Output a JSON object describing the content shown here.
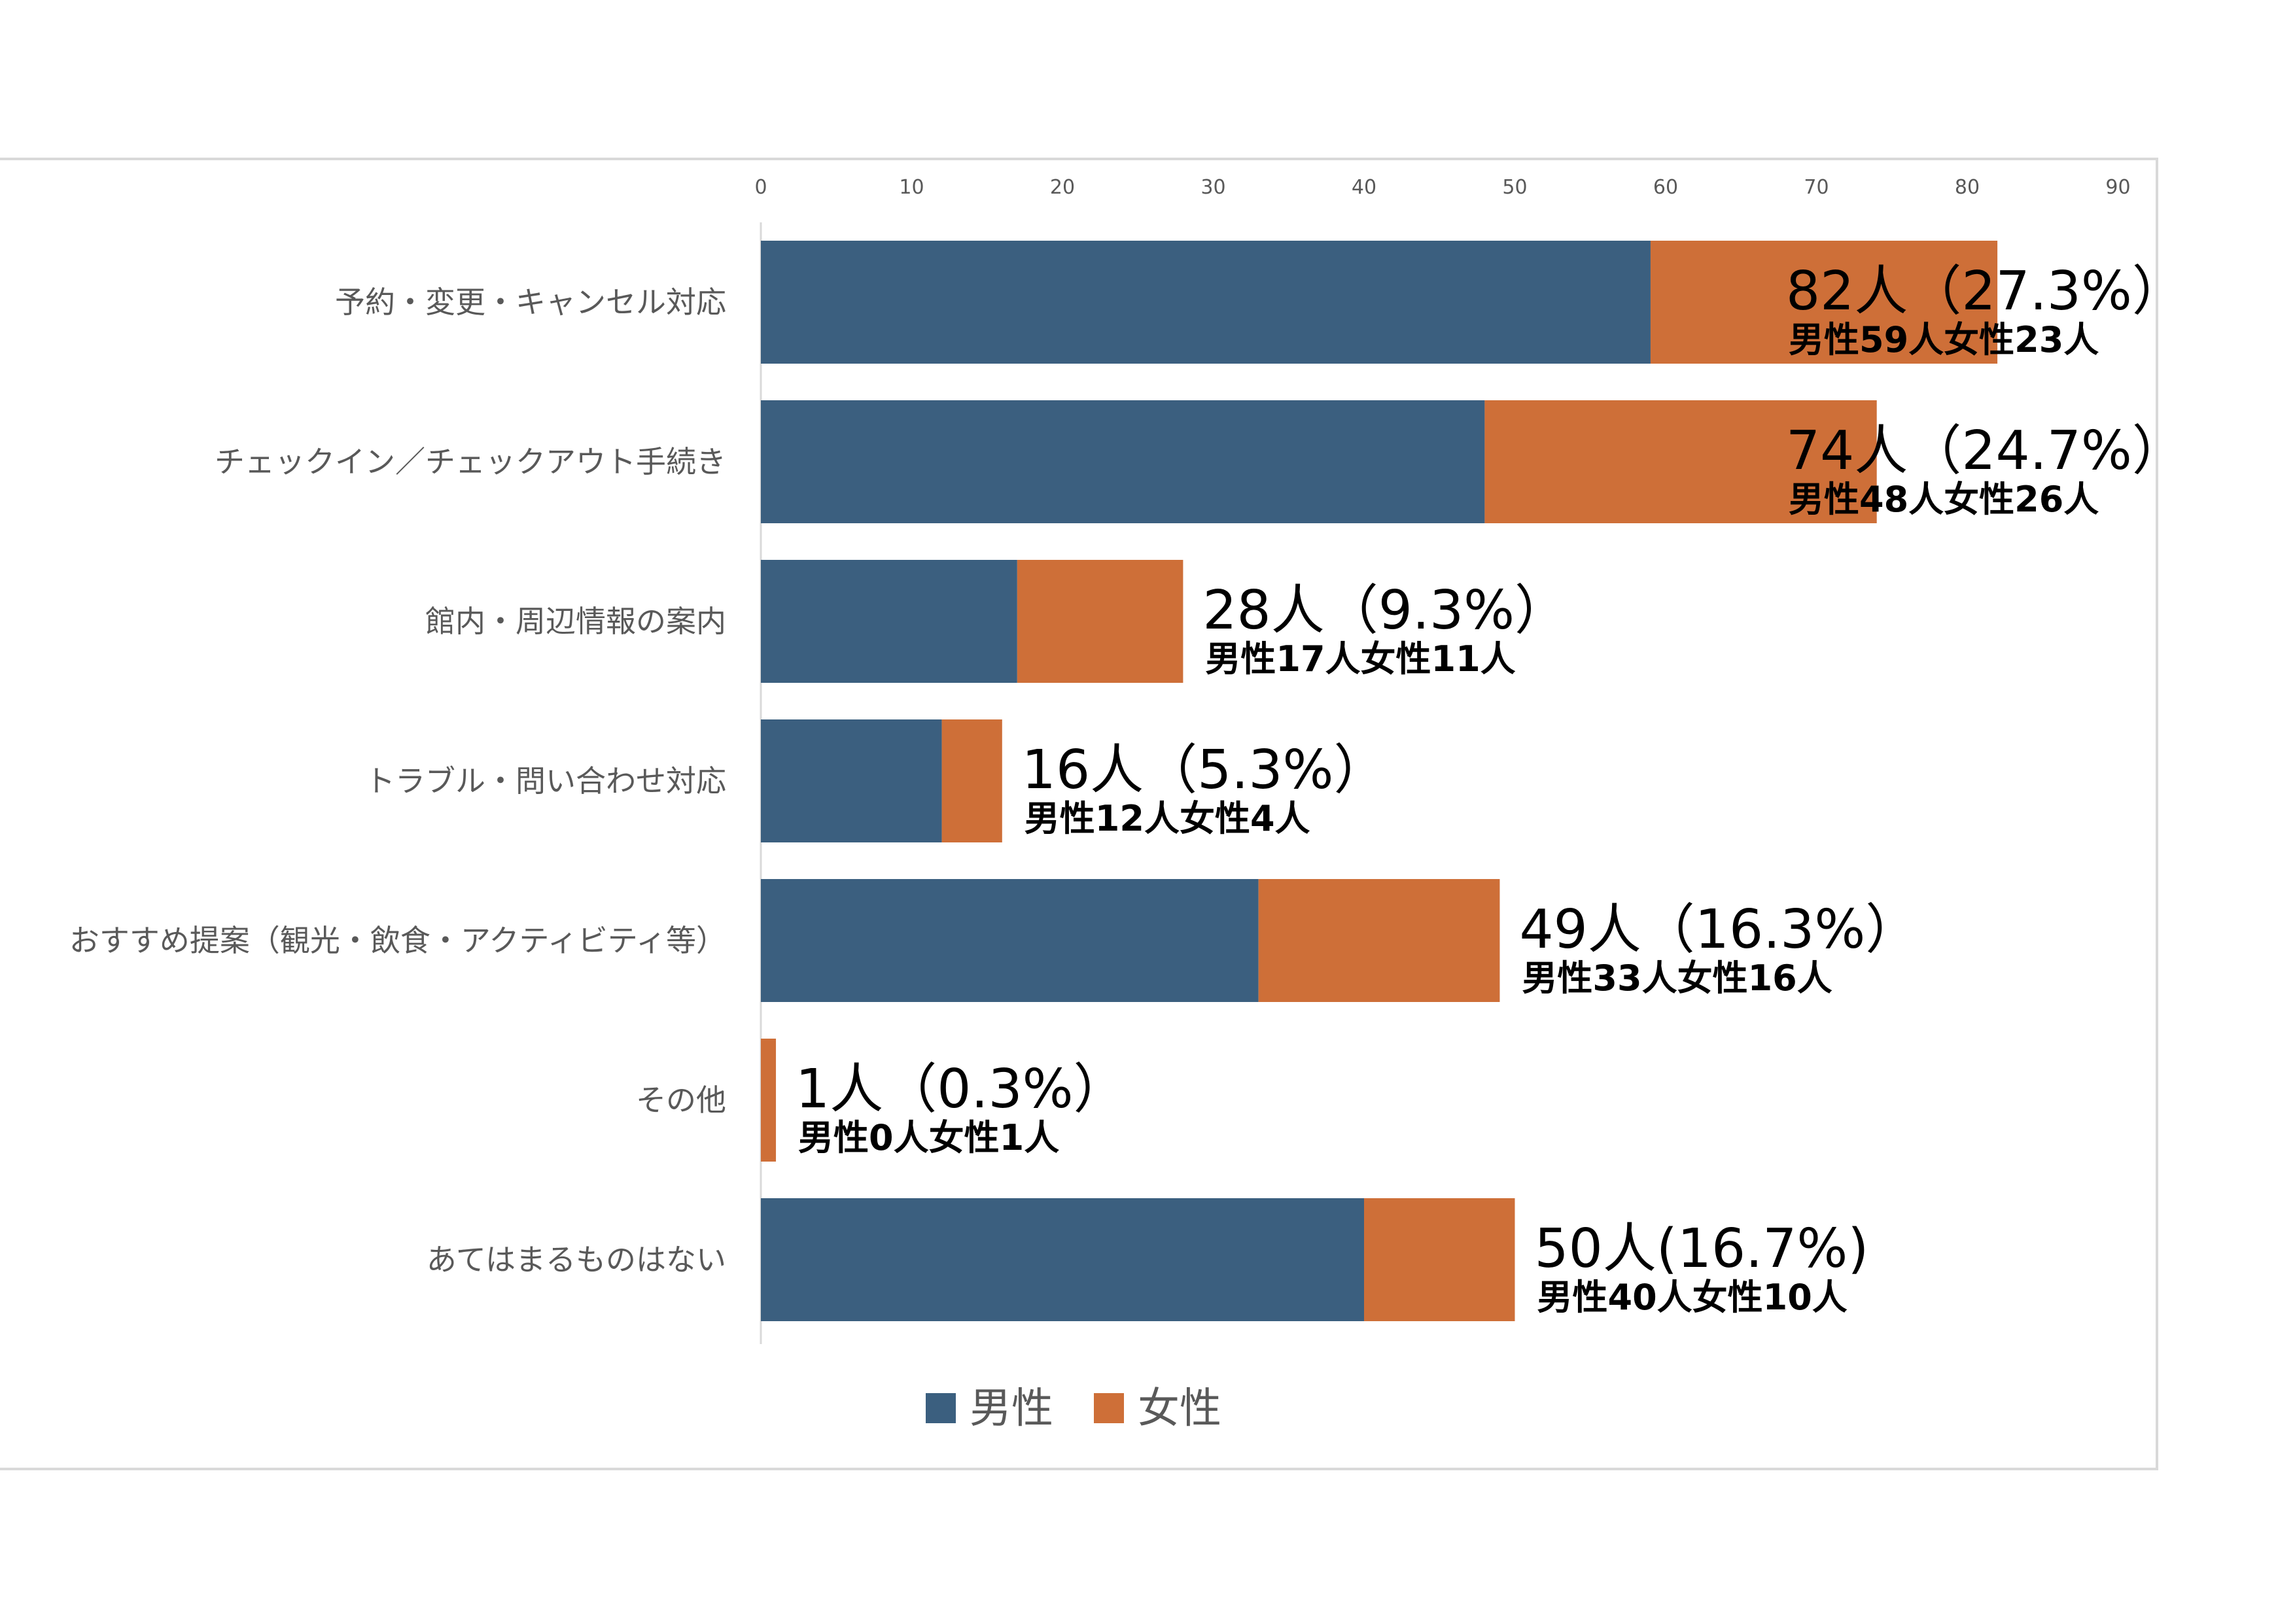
{
  "chart_data": {
    "type": "bar",
    "orientation": "horizontal",
    "stacked": true,
    "title": "",
    "xlabel": "",
    "ylabel": "",
    "xlim": [
      0,
      90
    ],
    "x_ticks": [
      0,
      10,
      20,
      30,
      40,
      50,
      60,
      70,
      80,
      90
    ],
    "x_tick_labels": [
      "0",
      "10",
      "20",
      "30",
      "40",
      "50",
      "60",
      "70",
      "80",
      "90"
    ],
    "x_axis_position": "top",
    "grid": false,
    "legend_position": "bottom",
    "categories": [
      "予約・変更・キャンセル対応",
      "チェックイン／チェックアウト手続き",
      "館内・周辺情報の案内",
      "トラブル・問い合わせ対応",
      "おすすめ提案（観光・飲食・アクティビティ等）",
      "その他",
      "あてはまるものはない"
    ],
    "series": [
      {
        "name": "男性",
        "color": "#3B5F7F",
        "values": [
          59,
          48,
          17,
          12,
          33,
          0,
          40
        ]
      },
      {
        "name": "女性",
        "color": "#CE6F38",
        "values": [
          23,
          26,
          11,
          4,
          16,
          1,
          10
        ]
      }
    ],
    "total_labels": [
      "82人（27.3%）",
      "74人（24.7%）",
      "28人（9.3%）",
      "16人（5.3%）",
      "49人（16.3%）",
      "1人（0.3%）",
      "50人(16.7%)"
    ],
    "breakdown_labels": [
      "男性59人女性23人",
      "男性48人女性26人",
      "男性17人女性11人",
      "男性12人女性4人",
      "男性33人女性16人",
      "男性0人女性1人",
      "男性40人女性10人"
    ]
  }
}
